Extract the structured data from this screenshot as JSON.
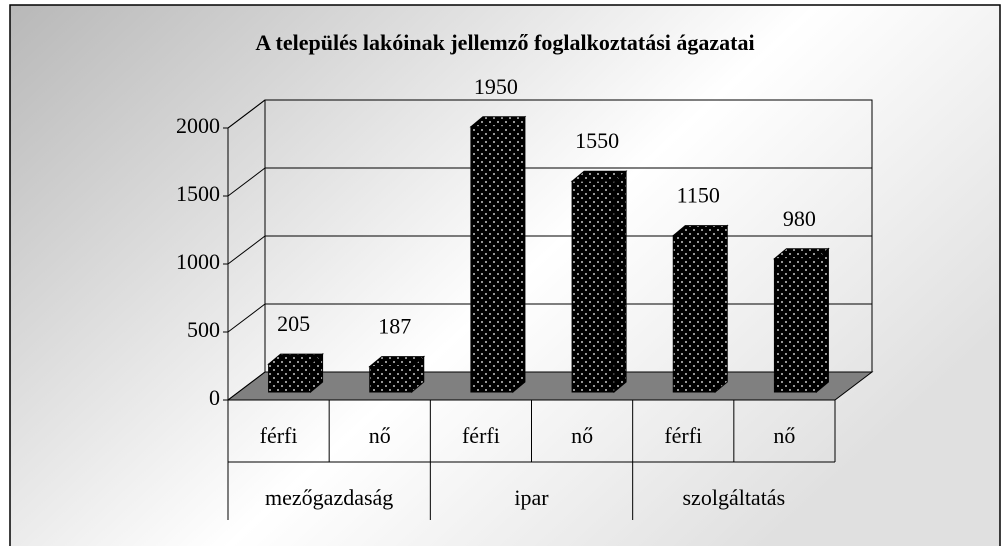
{
  "chart_data": {
    "type": "bar3d",
    "title": "A település lakóinak jellemző foglalkoztatási ágazatai",
    "categories": [
      "férfi",
      "nő",
      "férfi",
      "nő",
      "férfi",
      "nő"
    ],
    "groups": [
      "mezőgazdaság",
      "ipar",
      "szolgáltatás"
    ],
    "values": [
      205,
      187,
      1950,
      1550,
      1150,
      980
    ],
    "color": "#000000",
    "ylim": [
      0,
      2000
    ],
    "yticks": [
      0,
      500,
      1000,
      1500,
      2000
    ],
    "grid": true
  }
}
